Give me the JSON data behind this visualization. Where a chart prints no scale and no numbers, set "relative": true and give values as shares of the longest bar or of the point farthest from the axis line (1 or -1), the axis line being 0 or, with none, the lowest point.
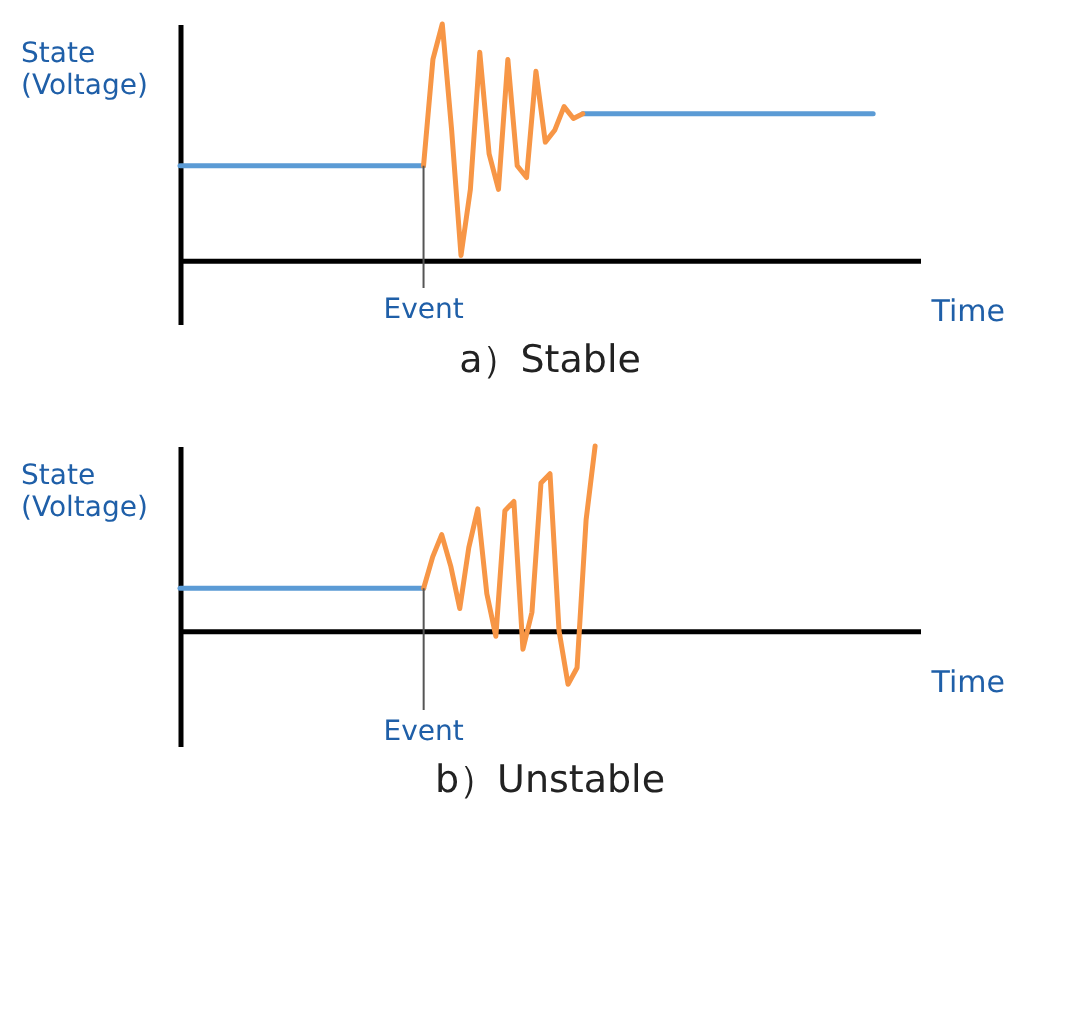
{
  "chart_data": [
    {
      "type": "line",
      "title": "a）Stable",
      "xlabel": "Time",
      "ylabel": "State (Voltage)",
      "relative": true,
      "annotations": [
        "Event"
      ],
      "categories": [
        null,
        null,
        null,
        null,
        null,
        null,
        null,
        null,
        null,
        null,
        null,
        null,
        null,
        null,
        null,
        null,
        null,
        null,
        null,
        null,
        null,
        null,
        null,
        null,
        null,
        null,
        null,
        null,
        null,
        null,
        null,
        null,
        null,
        null,
        null,
        null,
        null,
        null,
        null,
        null,
        null,
        null,
        null,
        null,
        null,
        null,
        null,
        null,
        null,
        null,
        null,
        null,
        null,
        null,
        null,
        null,
        null,
        null,
        null,
        null,
        null,
        null,
        null,
        null,
        null,
        null,
        null,
        null,
        null,
        null,
        null,
        null,
        null,
        null,
        null,
        null,
        null,
        null,
        null,
        null
      ],
      "series": [
        {
          "color": "#5b9bd5",
          "values": [
            0.4,
            0.4,
            0.4,
            0.4,
            0.4,
            0.4,
            0.4,
            0.4,
            0.4,
            0.4,
            0.4,
            0.4,
            0.4,
            0.4,
            0.4,
            0.4,
            0.4,
            0.4,
            0.4,
            0.4,
            0.4,
            0.4,
            0.4,
            0.4,
            0.4,
            0.4,
            0.4,
            null,
            null,
            null,
            null,
            null,
            null,
            null,
            null,
            null,
            null,
            null,
            null,
            null,
            null,
            null,
            null,
            0.62,
            0.62,
            0.62,
            0.62,
            0.62,
            0.62,
            0.62,
            0.62,
            0.62,
            0.62,
            0.62,
            0.62,
            0.62,
            0.62,
            0.62,
            0.62,
            0.62,
            0.62,
            0.62,
            0.62,
            0.62,
            0.62,
            0.62,
            0.62,
            0.62,
            0.62,
            0.62,
            0.62,
            0.62,
            0.62,
            0.62,
            0.62,
            null,
            null,
            null,
            null,
            null
          ]
        },
        {
          "color": "#f79646",
          "values": [
            null,
            null,
            null,
            null,
            null,
            null,
            null,
            null,
            null,
            null,
            null,
            null,
            null,
            null,
            null,
            null,
            null,
            null,
            null,
            null,
            null,
            null,
            null,
            null,
            null,
            null,
            0.4,
            0.85,
            1,
            0.55,
            0.02,
            0.3,
            0.88,
            0.45,
            0.3,
            0.85,
            0.4,
            0.35,
            0.8,
            0.5,
            0.55,
            0.65,
            0.6,
            0.62,
            null,
            null,
            null,
            null,
            null,
            null,
            null,
            null,
            null,
            null,
            null,
            null,
            null,
            null,
            null,
            null,
            null,
            null,
            null,
            null,
            null,
            null,
            null,
            null,
            null,
            null,
            null,
            null,
            null,
            null,
            null,
            null,
            null,
            null,
            null,
            null
          ]
        }
      ]
    },
    {
      "type": "line",
      "title": "b）Unstable",
      "xlabel": "Time",
      "ylabel": "State (Voltage)",
      "relative": true,
      "annotations": [
        "Event"
      ],
      "categories": [
        null,
        null,
        null,
        null,
        null,
        null,
        null,
        null,
        null,
        null,
        null,
        null,
        null,
        null,
        null,
        null,
        null,
        null,
        null,
        null,
        null,
        null,
        null,
        null,
        null,
        null,
        null,
        null,
        null,
        null,
        null,
        null,
        null,
        null,
        null,
        null,
        null,
        null,
        null,
        null,
        null,
        null,
        null,
        null,
        null,
        null,
        null,
        null,
        null,
        null,
        null,
        null,
        null,
        null,
        null,
        null,
        null,
        null,
        null,
        null,
        null,
        null,
        null,
        null,
        null,
        null,
        null,
        null,
        null,
        null,
        null,
        null,
        null,
        null,
        null,
        null,
        null,
        null,
        null,
        null,
        null,
        null,
        null
      ],
      "series": [
        {
          "color": "#5b9bd5",
          "values": [
            0.23,
            0.23,
            0.23,
            0.23,
            0.23,
            0.23,
            0.23,
            0.23,
            0.23,
            0.23,
            0.23,
            0.23,
            0.23,
            0.23,
            0.23,
            0.23,
            0.23,
            0.23,
            0.23,
            0.23,
            0.23,
            0.23,
            0.23,
            0.23,
            0.23,
            0.23,
            0.23,
            0.23,
            null,
            null,
            null,
            null,
            null,
            null,
            null,
            null,
            null,
            null,
            null,
            null,
            null,
            null,
            null,
            null,
            null,
            null,
            null,
            null,
            null,
            null,
            null,
            null,
            null,
            null,
            null,
            null,
            null,
            null,
            null,
            null,
            null,
            null,
            null,
            null,
            null,
            null,
            null,
            null,
            null,
            null,
            null,
            null,
            null,
            null,
            null,
            null,
            null,
            null,
            null,
            null,
            null,
            null,
            null
          ]
        },
        {
          "color": "#f79646",
          "values": [
            null,
            null,
            null,
            null,
            null,
            null,
            null,
            null,
            null,
            null,
            null,
            null,
            null,
            null,
            null,
            null,
            null,
            null,
            null,
            null,
            null,
            null,
            null,
            null,
            null,
            null,
            null,
            0.23,
            0.4,
            0.52,
            0.35,
            0.12,
            0.45,
            0.66,
            0.2,
            -0.03,
            0.65,
            0.7,
            -0.1,
            0.1,
            0.8,
            0.85,
            0,
            -0.29,
            -0.2,
            0.6,
            1,
            null,
            null,
            null,
            null,
            null,
            null,
            null,
            null,
            null,
            null,
            null,
            null,
            null,
            null,
            null,
            null,
            null,
            null,
            null,
            null,
            null,
            null,
            null,
            null,
            null,
            null,
            null,
            null,
            null,
            null,
            null,
            null,
            null,
            null,
            null,
            null
          ]
        }
      ]
    }
  ]
}
